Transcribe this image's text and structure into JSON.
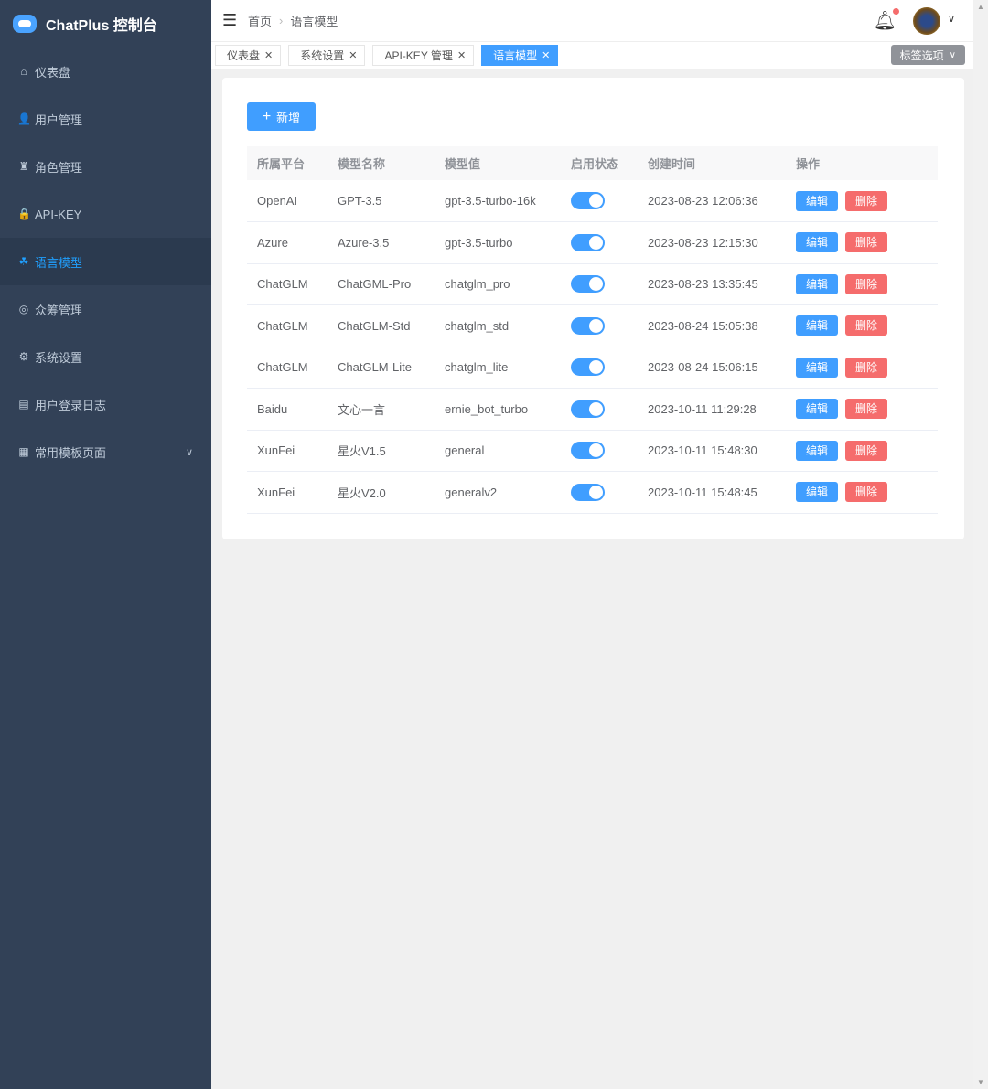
{
  "app": {
    "title": "ChatPlus 控制台"
  },
  "sidebar": {
    "items": [
      {
        "label": "仪表盘",
        "icon": "home-icon",
        "glyph": "⌂"
      },
      {
        "label": "用户管理",
        "icon": "user-icon",
        "glyph": "👤"
      },
      {
        "label": "角色管理",
        "icon": "role-icon",
        "glyph": "♜"
      },
      {
        "label": "API-KEY",
        "icon": "lock-icon",
        "glyph": "🔒"
      },
      {
        "label": "语言模型",
        "icon": "model-icon",
        "glyph": "☘",
        "active": true
      },
      {
        "label": "众筹管理",
        "icon": "crowdfund-icon",
        "glyph": "◎"
      },
      {
        "label": "系统设置",
        "icon": "gear-icon",
        "glyph": "⚙"
      },
      {
        "label": "用户登录日志",
        "icon": "log-icon",
        "glyph": "▤"
      },
      {
        "label": "常用模板页面",
        "icon": "grid-icon",
        "glyph": "▦",
        "expandable": true
      }
    ]
  },
  "header": {
    "breadcrumb": [
      "首页",
      "语言模型"
    ]
  },
  "tabs": {
    "items": [
      "仪表盘",
      "系统设置",
      "API-KEY 管理",
      "语言模型"
    ],
    "active": 3,
    "options_label": "标签选项"
  },
  "toolbar": {
    "add_label": "新增"
  },
  "table": {
    "columns": [
      "所属平台",
      "模型名称",
      "模型值",
      "启用状态",
      "创建时间",
      "操作"
    ],
    "edit_label": "编辑",
    "delete_label": "删除",
    "rows": [
      {
        "platform": "OpenAI",
        "name": "GPT-3.5",
        "value": "gpt-3.5-turbo-16k",
        "enabled": true,
        "created": "2023-08-23 12:06:36"
      },
      {
        "platform": "Azure",
        "name": "Azure-3.5",
        "value": "gpt-3.5-turbo",
        "enabled": true,
        "created": "2023-08-23 12:15:30"
      },
      {
        "platform": "ChatGLM",
        "name": "ChatGML-Pro",
        "value": "chatglm_pro",
        "enabled": true,
        "created": "2023-08-23 13:35:45"
      },
      {
        "platform": "ChatGLM",
        "name": "ChatGLM-Std",
        "value": "chatglm_std",
        "enabled": true,
        "created": "2023-08-24 15:05:38"
      },
      {
        "platform": "ChatGLM",
        "name": "ChatGLM-Lite",
        "value": "chatglm_lite",
        "enabled": true,
        "created": "2023-08-24 15:06:15"
      },
      {
        "platform": "Baidu",
        "name": "文心一言",
        "value": "ernie_bot_turbo",
        "enabled": true,
        "created": "2023-10-11 11:29:28"
      },
      {
        "platform": "XunFei",
        "name": "星火V1.5",
        "value": "general",
        "enabled": true,
        "created": "2023-10-11 15:48:30"
      },
      {
        "platform": "XunFei",
        "name": "星火V2.0",
        "value": "generalv2",
        "enabled": true,
        "created": "2023-10-11 15:48:45"
      }
    ]
  },
  "colors": {
    "sidebar": "#324157",
    "accent": "#409eff",
    "danger": "#f56c6c"
  }
}
